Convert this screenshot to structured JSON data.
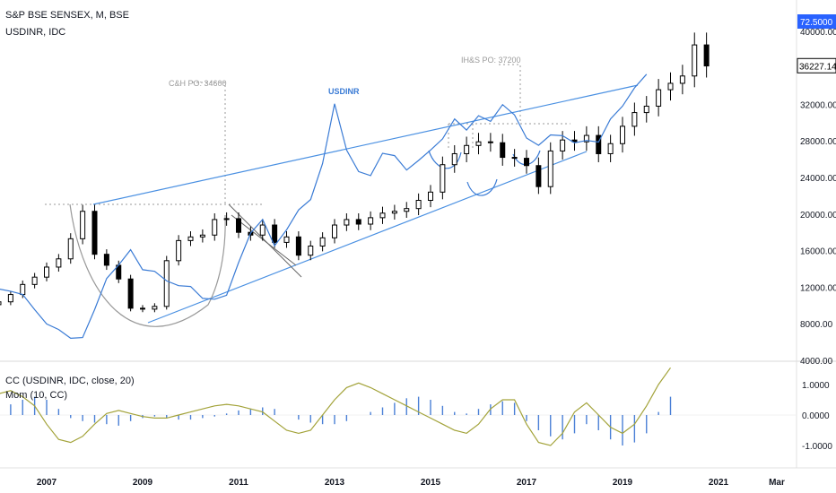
{
  "legend": {
    "main": "S&P BSE SENSEX, M, BSE",
    "compare": "USDINR, IDC",
    "cc": "CC (USDINR, IDC, close, 20)",
    "mom": "Mom (10, CC)"
  },
  "annotations": {
    "chs": "C&H PO: 34600",
    "ihs": "IH&S PO: 37200",
    "usdinr": "USDINR"
  },
  "price_tags": {
    "usdinr_last": "72.5000",
    "sensex_last": "36227.14"
  },
  "colors": {
    "up_candle": "#ffffff",
    "down_candle": "#000000",
    "usdinr_line": "#3a7bd5",
    "trendline": "#4a90e2",
    "pattern_arc": "#999999",
    "cc_line": "#a3a33a",
    "mom_bars": "#4a7fd6",
    "usdinr_tag": "#2962ff",
    "sensex_tag_bg": "#ffffff"
  },
  "chart_data": [
    {
      "type": "candlestick",
      "name": "S&P BSE SENSEX, M, BSE",
      "ylim": [
        4000,
        44000
      ],
      "yticks": [
        "40000.00",
        "36000.00",
        "32000.00",
        "28000.00",
        "24000.00",
        "20000.00",
        "16000.00",
        "12000.00",
        "8000.00",
        "4000.00"
      ],
      "xticks": [
        "2007",
        "2009",
        "2011",
        "2013",
        "2015",
        "2017",
        "2019",
        "2021",
        "Mar"
      ],
      "xlim": [
        2006.0,
        2021.25
      ],
      "x_start": 2006.0,
      "interval_months": 3,
      "closes": [
        10400,
        11200,
        12300,
        13100,
        14200,
        15100,
        17300,
        20300,
        15600,
        14400,
        12900,
        9700,
        9600,
        9900,
        14900,
        17100,
        17500,
        17700,
        19400,
        19500,
        18000,
        17700,
        18800,
        16900,
        17500,
        15500,
        16500,
        17400,
        18800,
        19400,
        18900,
        19600,
        20100,
        20300,
        20600,
        21500,
        22400,
        25400,
        26600,
        27500,
        27900,
        27800,
        26200,
        26100,
        25300,
        23000,
        26900,
        28100,
        27900,
        28600,
        26600,
        27700,
        29600,
        31100,
        31800,
        33600,
        34300,
        35100,
        38500,
        36200
      ],
      "last": 36227.14
    },
    {
      "type": "line",
      "name": "USDINR, IDC",
      "x_start": 2006.0,
      "interval_months": 3,
      "values": [
        45.6,
        45.3,
        44.9,
        43.0,
        41.2,
        40.5,
        39.4,
        39.5,
        43.0,
        46.9,
        48.6,
        50.5,
        48.0,
        47.8,
        46.6,
        46.0,
        45.9,
        44.4,
        44.3,
        44.8,
        48.9,
        52.6,
        54.3,
        51.0,
        53.0,
        55.5,
        56.8,
        61.3,
        68.8,
        63.0,
        60.3,
        59.8,
        62.6,
        62.3,
        60.5,
        61.7,
        63.0,
        64.4,
        66.9,
        65.5,
        67.3,
        66.6,
        68.7,
        67.4,
        64.5,
        63.6,
        64.9,
        64.8,
        63.9,
        64.2,
        64.0,
        66.9,
        68.5,
        70.8,
        72.5
      ],
      "last": 72.5
    },
    {
      "type": "line",
      "name": "CC (USDINR, IDC, close, 20)",
      "ylim": [
        -1.5,
        1.5
      ],
      "yticks": [
        "1.0000",
        "0.0000",
        "-1.0000"
      ],
      "x_start": 2006.0,
      "interval_months": 3,
      "values": [
        0.7,
        0.8,
        0.6,
        0.3,
        -0.3,
        -0.8,
        -0.9,
        -0.7,
        -0.3,
        0.05,
        0.15,
        0.05,
        -0.05,
        -0.1,
        -0.1,
        0.0,
        0.1,
        0.2,
        0.3,
        0.35,
        0.3,
        0.2,
        0.1,
        -0.2,
        -0.5,
        -0.6,
        -0.5,
        0.0,
        0.5,
        0.9,
        1.05,
        0.9,
        0.7,
        0.5,
        0.3,
        0.1,
        -0.1,
        -0.3,
        -0.5,
        -0.6,
        -0.3,
        0.2,
        0.5,
        0.5,
        -0.3,
        -0.9,
        -1.0,
        -0.6,
        0.1,
        0.4,
        0.0,
        -0.4,
        -0.6,
        -0.3,
        0.3,
        1.0,
        1.55
      ]
    },
    {
      "type": "bar",
      "name": "Mom (10, CC)",
      "x_start": 2006.0,
      "interval_months": 3,
      "values": [
        0.2,
        0.35,
        0.5,
        0.6,
        0.5,
        0.2,
        -0.1,
        -0.2,
        -0.25,
        -0.3,
        -0.35,
        -0.2,
        -0.1,
        -0.05,
        -0.1,
        -0.15,
        -0.15,
        -0.1,
        -0.05,
        0.05,
        0.15,
        0.2,
        0.25,
        0.2,
        0.0,
        -0.15,
        -0.25,
        -0.3,
        -0.3,
        -0.2,
        0.0,
        0.1,
        0.25,
        0.4,
        0.55,
        0.6,
        0.5,
        0.3,
        0.1,
        0.05,
        0.2,
        0.35,
        0.45,
        0.4,
        -0.2,
        -0.5,
        -0.7,
        -0.8,
        -0.6,
        -0.3,
        -0.5,
        -0.8,
        -1.0,
        -0.9,
        -0.6,
        0.1,
        0.6
      ]
    }
  ]
}
